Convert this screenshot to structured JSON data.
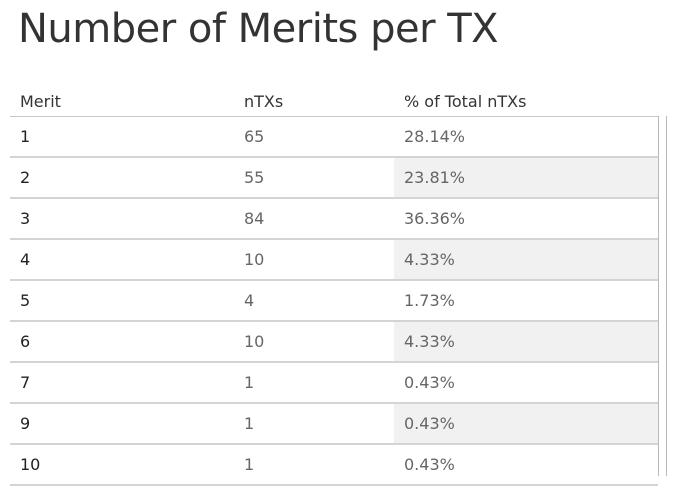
{
  "chart_data": {
    "type": "table",
    "title": "Number of Merits per TX",
    "columns": [
      "Merit",
      "nTXs",
      "% of Total nTXs"
    ],
    "rows": [
      {
        "merit": "1",
        "ntx": "65",
        "pct": "28.14%"
      },
      {
        "merit": "2",
        "ntx": "55",
        "pct": "23.81%"
      },
      {
        "merit": "3",
        "ntx": "84",
        "pct": "36.36%"
      },
      {
        "merit": "4",
        "ntx": "10",
        "pct": "4.33%"
      },
      {
        "merit": "5",
        "ntx": "4",
        "pct": "1.73%"
      },
      {
        "merit": "6",
        "ntx": "10",
        "pct": "4.33%"
      },
      {
        "merit": "7",
        "ntx": "1",
        "pct": "0.43%"
      },
      {
        "merit": "9",
        "ntx": "1",
        "pct": "0.43%"
      },
      {
        "merit": "10",
        "ntx": "1",
        "pct": "0.43%"
      }
    ],
    "shaded_rows": [
      1,
      3,
      5,
      7
    ],
    "colors": {
      "text": "#333333",
      "muted_text": "#666666",
      "row_shade": "#f1f1f1",
      "rule": "#d4d4d4"
    }
  }
}
